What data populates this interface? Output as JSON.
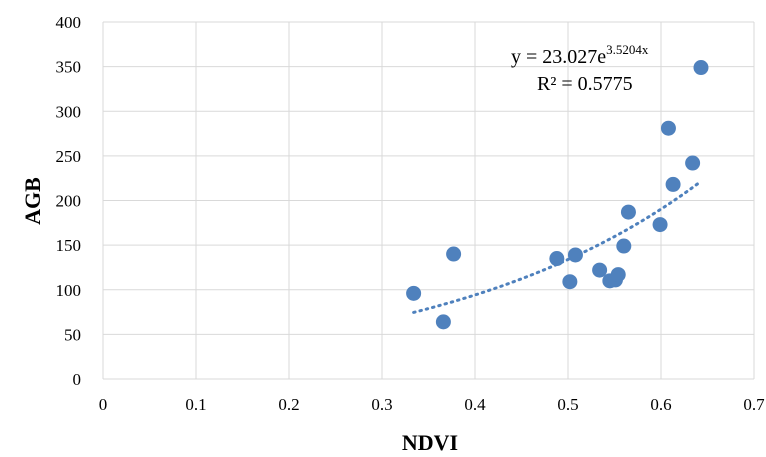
{
  "chart_data": {
    "type": "scatter",
    "xlabel": "NDVI",
    "ylabel": "AGB",
    "xlim": [
      0,
      0.7
    ],
    "ylim": [
      0,
      400
    ],
    "x_ticks": [
      "0",
      "0.1",
      "0.2",
      "0.3",
      "0.4",
      "0.5",
      "0.6",
      "0.7"
    ],
    "y_ticks": [
      "0",
      "50",
      "100",
      "150",
      "200",
      "250",
      "300",
      "350",
      "400"
    ],
    "grid": true,
    "color": "#4f81bd",
    "points": [
      {
        "x": 0.334,
        "y": 96
      },
      {
        "x": 0.366,
        "y": 64
      },
      {
        "x": 0.377,
        "y": 140
      },
      {
        "x": 0.488,
        "y": 135
      },
      {
        "x": 0.502,
        "y": 109
      },
      {
        "x": 0.508,
        "y": 139
      },
      {
        "x": 0.534,
        "y": 122
      },
      {
        "x": 0.545,
        "y": 110
      },
      {
        "x": 0.551,
        "y": 111
      },
      {
        "x": 0.554,
        "y": 117
      },
      {
        "x": 0.56,
        "y": 149
      },
      {
        "x": 0.565,
        "y": 187
      },
      {
        "x": 0.599,
        "y": 173
      },
      {
        "x": 0.608,
        "y": 281
      },
      {
        "x": 0.613,
        "y": 218
      },
      {
        "x": 0.634,
        "y": 242
      },
      {
        "x": 0.643,
        "y": 349
      }
    ],
    "trendline": {
      "type": "exponential",
      "a": 23.027,
      "b": 3.5204,
      "x_range": [
        0.334,
        0.643
      ],
      "equation_main": "y = 23.027e",
      "equation_exponent": "3.5204x",
      "r_squared": "R² = 0.5775"
    }
  }
}
